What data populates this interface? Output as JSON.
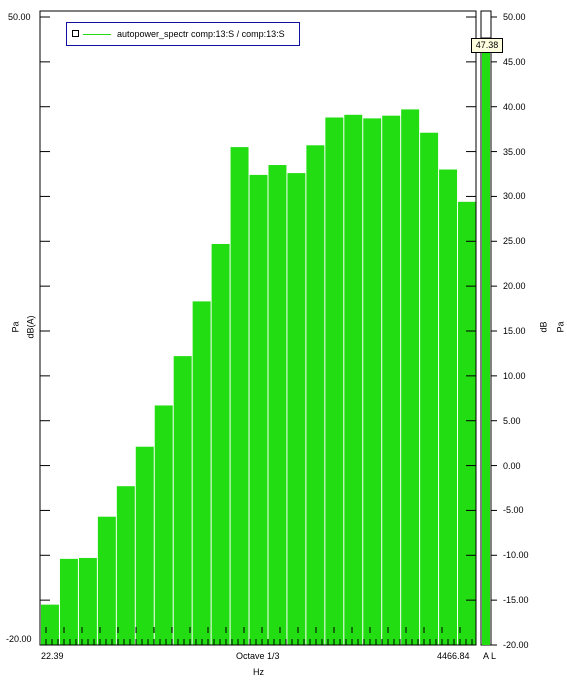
{
  "legend": {
    "entry": "autopower_spectr comp:13:S / comp:13:S",
    "color": "#22dd11"
  },
  "left_axis": {
    "unit_top": "Pa",
    "unit_bottom": "dB(A)",
    "top_label": "50.00",
    "bottom_label": "-20.00"
  },
  "right_axis": {
    "unit_top": "dB",
    "unit_bottom": "Pa",
    "ticks": [
      "50.00",
      "45.00",
      "40.00",
      "35.00",
      "30.00",
      "25.00",
      "20.00",
      "15.00",
      "10.00",
      "5.00",
      "0.00",
      "-5.00",
      "-10.00",
      "-15.00",
      "-20.00"
    ]
  },
  "x_axis": {
    "min_label": "22.39",
    "max_label": "4466.84",
    "center_label": "Octave 1/3",
    "unit": "Hz"
  },
  "level_meter": {
    "value_label": "47.38",
    "value": 47.38,
    "channel_label": "A L",
    "color": "#22dd11"
  },
  "chart_data": {
    "type": "bar",
    "ylim": [
      -20,
      50
    ],
    "bar_color": "#22dd11",
    "values": [
      -15.5,
      -10.4,
      -10.3,
      -5.7,
      -2.3,
      2.1,
      6.7,
      12.2,
      18.3,
      24.7,
      35.5,
      32.4,
      33.5,
      32.6,
      35.7,
      38.8,
      39.1,
      38.7,
      39.0,
      39.7,
      37.1,
      33.0,
      29.4
    ]
  }
}
